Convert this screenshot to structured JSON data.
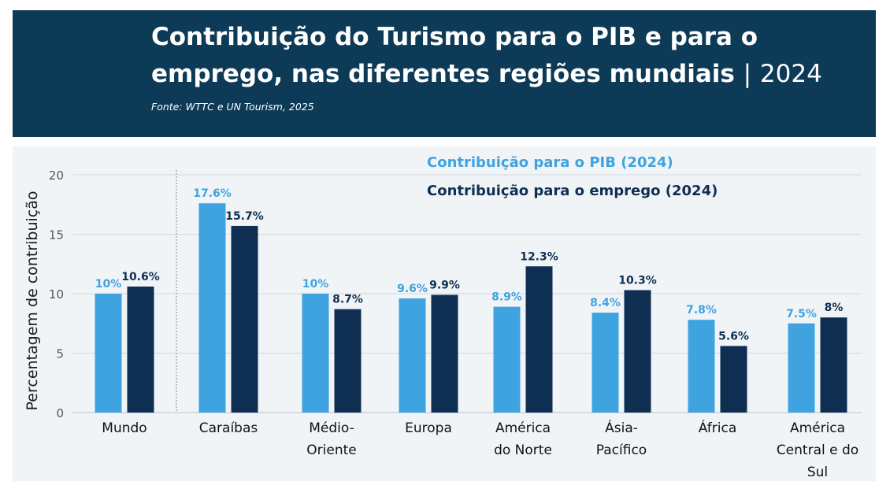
{
  "header": {
    "title_line1": "Contribuição do Turismo para o PIB e para o",
    "title_line2": "emprego, nas diferentes regiões mundiais",
    "title_separator": "|",
    "title_year": "2024",
    "source": "Fonte: WTTC e UN Tourism, 2025"
  },
  "colors": {
    "header_bg": "#0d3a57",
    "pib": "#3fa3e0",
    "emprego": "#0f2f52",
    "panel_bg": "#f1f4f7",
    "grid": "#d3d8de"
  },
  "chart_data": {
    "type": "bar",
    "ylabel": "Percentagem de contribuição",
    "ylim": [
      0,
      20
    ],
    "yticks": [
      0,
      5,
      10,
      15,
      20
    ],
    "grid": true,
    "legend_position": "top-right",
    "categories": [
      [
        "Mundo"
      ],
      [
        "Caraíbas"
      ],
      [
        "Médio-",
        "Oriente"
      ],
      [
        "Europa"
      ],
      [
        "América",
        "do Norte"
      ],
      [
        "Ásia-",
        "Pacífico"
      ],
      [
        "África"
      ],
      [
        "América",
        "Central e do",
        "Sul"
      ]
    ],
    "series": [
      {
        "name": "Contribuição para o PIB (2024)",
        "values": [
          10,
          17.6,
          10,
          9.6,
          8.9,
          8.4,
          7.8,
          7.5
        ],
        "labels": [
          "10%",
          "17.6%",
          "10%",
          "9.6%",
          "8.9%",
          "8.4%",
          "7.8%",
          "7.5%"
        ]
      },
      {
        "name": "Contribuição para o emprego (2024)",
        "values": [
          10.6,
          15.7,
          8.7,
          9.9,
          12.3,
          10.3,
          5.6,
          8
        ],
        "labels": [
          "10.6%",
          "15.7%",
          "8.7%",
          "9.9%",
          "12.3%",
          "10.3%",
          "5.6%",
          "8%"
        ]
      }
    ]
  }
}
